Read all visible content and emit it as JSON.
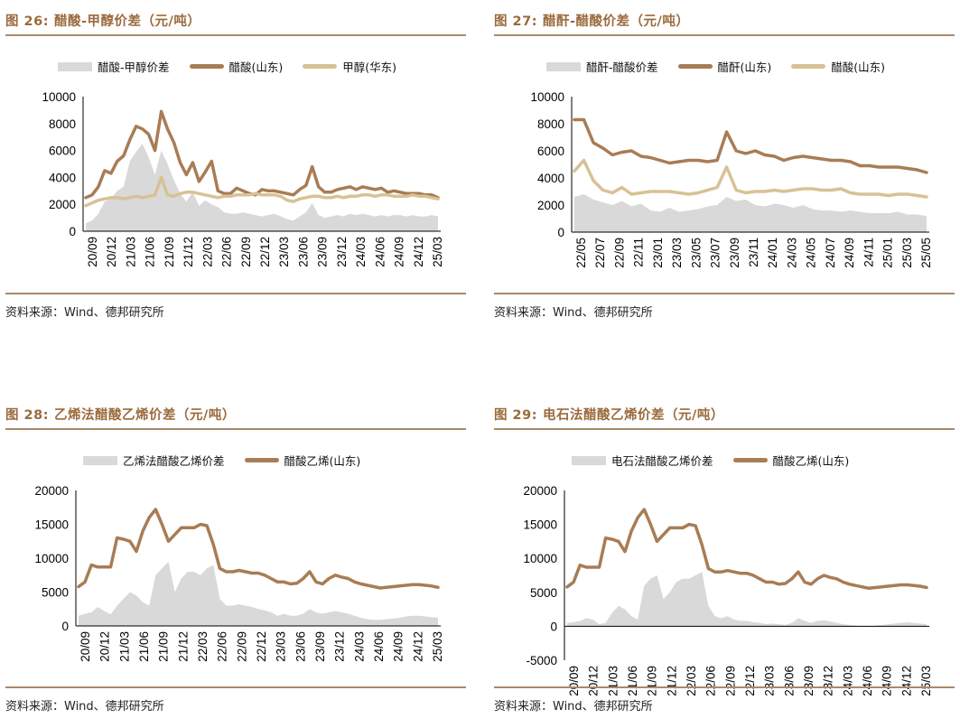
{
  "panels": [
    {
      "fig_num": "图 26:",
      "fig_title": "醋酸-甲醇价差（元/吨）",
      "source": "资料来源：Wind、德邦研究所"
    },
    {
      "fig_num": "图 27:",
      "fig_title": "醋酐-醋酸价差（元/吨）",
      "source": "资料来源：Wind、德邦研究所"
    },
    {
      "fig_num": "图 28:",
      "fig_title": "乙烯法醋酸乙烯价差（元/吨）",
      "source": "资料来源：Wind、德邦研究所"
    },
    {
      "fig_num": "图 29:",
      "fig_title": "电石法醋酸乙烯价差（元/吨）",
      "source": "资料来源：Wind、德邦研究所"
    }
  ],
  "colors": {
    "title": "#9a6b3d",
    "rule": "#a88a6b",
    "area": "#d9d9d9",
    "dark_line": "#a87c55",
    "light_line": "#d8c195"
  },
  "chart_data": [
    {
      "type": "line",
      "title": "",
      "x_tick_labels": [
        "20/09",
        "20/12",
        "21/03",
        "21/06",
        "21/09",
        "21/12",
        "22/03",
        "22/06",
        "22/09",
        "22/12",
        "23/03",
        "23/06",
        "23/09",
        "23/12",
        "24/03",
        "24/06",
        "24/09",
        "24/12",
        "25/03"
      ],
      "x": [
        "20/09",
        "20/10",
        "20/11",
        "20/12",
        "21/01",
        "21/02",
        "21/03",
        "21/04",
        "21/05",
        "21/06",
        "21/07",
        "21/08",
        "21/09",
        "21/10",
        "21/11",
        "21/12",
        "22/01",
        "22/02",
        "22/03",
        "22/04",
        "22/05",
        "22/06",
        "22/07",
        "22/08",
        "22/09",
        "22/10",
        "22/11",
        "22/12",
        "23/01",
        "23/02",
        "23/03",
        "23/04",
        "23/05",
        "23/06",
        "23/07",
        "23/08",
        "23/09",
        "23/10",
        "23/11",
        "23/12",
        "24/01",
        "24/02",
        "24/03",
        "24/04",
        "24/05",
        "24/06",
        "24/07",
        "24/08",
        "24/09",
        "24/10",
        "24/11",
        "24/12",
        "25/01",
        "25/02",
        "25/03",
        "25/04",
        "25/05"
      ],
      "ylim": [
        0,
        10000
      ],
      "yticks": [
        0,
        2000,
        4000,
        6000,
        8000,
        10000
      ],
      "series": [
        {
          "name": "醋酸-甲醇价差",
          "kind": "area",
          "values": [
            600,
            800,
            1300,
            2200,
            2400,
            3000,
            3300,
            5200,
            5900,
            6500,
            5500,
            4200,
            6000,
            5000,
            3800,
            2800,
            2200,
            2900,
            1900,
            2300,
            2000,
            1800,
            1400,
            1300,
            1300,
            1400,
            1300,
            1200,
            1100,
            1200,
            1300,
            1100,
            900,
            800,
            1100,
            1400,
            2100,
            1200,
            1000,
            1100,
            1200,
            1100,
            1300,
            1200,
            1300,
            1200,
            1100,
            1200,
            1100,
            1200,
            1200,
            1100,
            1200,
            1100,
            1100,
            1200,
            1100
          ]
        },
        {
          "name": "醋酸(山东)",
          "kind": "line",
          "values": [
            2500,
            2700,
            3300,
            4500,
            4300,
            5200,
            5600,
            6800,
            7800,
            7600,
            7200,
            6000,
            8900,
            7600,
            6600,
            5100,
            4200,
            5100,
            3700,
            4400,
            5200,
            3000,
            2800,
            2800,
            3200,
            3000,
            2800,
            2700,
            3100,
            3000,
            3000,
            2900,
            2800,
            2700,
            3100,
            3400,
            4800,
            3300,
            2900,
            2900,
            3100,
            3200,
            3300,
            3100,
            3300,
            3200,
            3100,
            3200,
            2900,
            3000,
            2900,
            2800,
            2800,
            2800,
            2700,
            2700,
            2500
          ]
        },
        {
          "name": "甲醇(华东)",
          "kind": "line",
          "values": [
            1900,
            2100,
            2300,
            2400,
            2500,
            2500,
            2400,
            2500,
            2600,
            2500,
            2600,
            2700,
            4000,
            2700,
            2600,
            2800,
            2900,
            2900,
            2800,
            2700,
            2600,
            2500,
            2600,
            2600,
            2700,
            2700,
            2700,
            2800,
            2700,
            2700,
            2700,
            2600,
            2300,
            2200,
            2400,
            2500,
            2600,
            2600,
            2500,
            2500,
            2600,
            2500,
            2600,
            2600,
            2700,
            2700,
            2600,
            2700,
            2700,
            2600,
            2600,
            2600,
            2700,
            2600,
            2600,
            2500,
            2400
          ]
        }
      ]
    },
    {
      "type": "line",
      "title": "",
      "x_tick_labels": [
        "22/05",
        "22/07",
        "22/09",
        "22/11",
        "23/01",
        "23/03",
        "23/05",
        "23/07",
        "23/09",
        "23/11",
        "24/01",
        "24/03",
        "24/05",
        "24/07",
        "24/09",
        "24/11",
        "25/01",
        "25/03",
        "25/05"
      ],
      "x": [
        "22/05",
        "22/06",
        "22/07",
        "22/08",
        "22/09",
        "22/10",
        "22/11",
        "22/12",
        "23/01",
        "23/02",
        "23/03",
        "23/04",
        "23/05",
        "23/06",
        "23/07",
        "23/08",
        "23/09",
        "23/10",
        "23/11",
        "23/12",
        "24/01",
        "24/02",
        "24/03",
        "24/04",
        "24/05",
        "24/06",
        "24/07",
        "24/08",
        "24/09",
        "24/10",
        "24/11",
        "24/12",
        "25/01",
        "25/02",
        "25/03",
        "25/04",
        "25/05",
        "25/06"
      ],
      "ylim": [
        0,
        10000
      ],
      "yticks": [
        0,
        2000,
        4000,
        6000,
        8000,
        10000
      ],
      "series": [
        {
          "name": "醋酐-醋酸价差",
          "kind": "area",
          "values": [
            2600,
            2800,
            2400,
            2200,
            2000,
            2300,
            1900,
            2100,
            1600,
            1500,
            1800,
            1500,
            1600,
            1700,
            1900,
            2000,
            2600,
            2300,
            2400,
            2000,
            1900,
            2100,
            2000,
            1800,
            2000,
            1700,
            1600,
            1600,
            1500,
            1600,
            1500,
            1400,
            1400,
            1400,
            1500,
            1300,
            1300,
            1200
          ]
        },
        {
          "name": "醋酐(山东)",
          "kind": "line",
          "values": [
            8300,
            8300,
            6600,
            6200,
            5700,
            5900,
            6000,
            5600,
            5500,
            5300,
            5100,
            5200,
            5300,
            5300,
            5200,
            5300,
            7400,
            6000,
            5800,
            6000,
            5700,
            5600,
            5300,
            5500,
            5600,
            5500,
            5400,
            5300,
            5300,
            5200,
            4900,
            4900,
            4800,
            4800,
            4800,
            4700,
            4600,
            4400
          ]
        },
        {
          "name": "醋酸(山东)",
          "kind": "line",
          "values": [
            4500,
            5300,
            3800,
            3100,
            2900,
            3300,
            2800,
            2900,
            3000,
            3000,
            3000,
            2900,
            2800,
            2900,
            3100,
            3300,
            4800,
            3100,
            2900,
            3000,
            3000,
            3100,
            3000,
            3100,
            3200,
            3200,
            3100,
            3100,
            3200,
            2900,
            2800,
            2800,
            2800,
            2700,
            2800,
            2800,
            2700,
            2600
          ]
        }
      ]
    },
    {
      "type": "line",
      "title": "",
      "x_tick_labels": [
        "20/09",
        "20/12",
        "21/03",
        "21/06",
        "21/09",
        "21/12",
        "22/03",
        "22/06",
        "22/09",
        "22/12",
        "23/03",
        "23/06",
        "23/09",
        "23/12",
        "24/03",
        "24/06",
        "24/09",
        "24/12",
        "25/03"
      ],
      "x": [
        "20/09",
        "20/10",
        "20/11",
        "20/12",
        "21/01",
        "21/02",
        "21/03",
        "21/04",
        "21/05",
        "21/06",
        "21/07",
        "21/08",
        "21/09",
        "21/10",
        "21/11",
        "21/12",
        "22/01",
        "22/02",
        "22/03",
        "22/04",
        "22/05",
        "22/06",
        "22/07",
        "22/08",
        "22/09",
        "22/10",
        "22/11",
        "22/12",
        "23/01",
        "23/02",
        "23/03",
        "23/04",
        "23/05",
        "23/06",
        "23/07",
        "23/08",
        "23/09",
        "23/10",
        "23/11",
        "23/12",
        "24/01",
        "24/02",
        "24/03",
        "24/04",
        "24/05",
        "24/06",
        "24/07",
        "24/08",
        "24/09",
        "24/10",
        "24/11",
        "24/12",
        "25/01",
        "25/02",
        "25/03",
        "25/04",
        "25/05"
      ],
      "ylim": [
        0,
        20000
      ],
      "yticks": [
        0,
        5000,
        10000,
        15000,
        20000
      ],
      "series": [
        {
          "name": "乙烯法醋酸乙烯价差",
          "kind": "area",
          "values": [
            1500,
            1800,
            2000,
            2800,
            2200,
            1700,
            3000,
            4000,
            5000,
            4500,
            3500,
            3000,
            7500,
            8500,
            9500,
            5000,
            7000,
            8000,
            8000,
            7500,
            8500,
            9000,
            4000,
            3000,
            3000,
            3200,
            3000,
            2800,
            2500,
            2300,
            2000,
            1500,
            1800,
            1500,
            1500,
            1800,
            2500,
            2000,
            1800,
            2000,
            2200,
            2000,
            1800,
            1500,
            1200,
            1000,
            900,
            900,
            1000,
            1100,
            1200,
            1400,
            1500,
            1500,
            1400,
            1300,
            1200
          ]
        },
        {
          "name": "醋酸乙烯(山东)",
          "kind": "line",
          "values": [
            5800,
            6500,
            9000,
            8700,
            8700,
            8700,
            13000,
            12800,
            12500,
            11000,
            14000,
            16000,
            17200,
            15000,
            12500,
            13500,
            14500,
            14500,
            14500,
            15000,
            14800,
            12000,
            8500,
            8000,
            8000,
            8200,
            8000,
            7800,
            7800,
            7500,
            7000,
            6500,
            6500,
            6200,
            6300,
            7000,
            8000,
            6500,
            6200,
            7000,
            7500,
            7200,
            7000,
            6500,
            6200,
            6000,
            5800,
            5600,
            5700,
            5800,
            5900,
            6000,
            6100,
            6100,
            6000,
            5900,
            5700
          ]
        }
      ]
    },
    {
      "type": "line",
      "title": "",
      "x_tick_labels": [
        "20/09",
        "20/12",
        "21/03",
        "21/06",
        "21/09",
        "21/12",
        "22/03",
        "22/06",
        "22/09",
        "22/12",
        "23/03",
        "23/06",
        "23/09",
        "23/12",
        "24/03",
        "24/06",
        "24/09",
        "24/12",
        "25/03"
      ],
      "x": [
        "20/09",
        "20/10",
        "20/11",
        "20/12",
        "21/01",
        "21/02",
        "21/03",
        "21/04",
        "21/05",
        "21/06",
        "21/07",
        "21/08",
        "21/09",
        "21/10",
        "21/11",
        "21/12",
        "22/01",
        "22/02",
        "22/03",
        "22/04",
        "22/05",
        "22/06",
        "22/07",
        "22/08",
        "22/09",
        "22/10",
        "22/11",
        "22/12",
        "23/01",
        "23/02",
        "23/03",
        "23/04",
        "23/05",
        "23/06",
        "23/07",
        "23/08",
        "23/09",
        "23/10",
        "23/11",
        "23/12",
        "24/01",
        "24/02",
        "24/03",
        "24/04",
        "24/05",
        "24/06",
        "24/07",
        "24/08",
        "24/09",
        "24/10",
        "24/11",
        "24/12",
        "25/01",
        "25/02",
        "25/03",
        "25/04",
        "25/05"
      ],
      "ylim": [
        -5000,
        20000
      ],
      "yticks": [
        -5000,
        0,
        5000,
        10000,
        15000,
        20000
      ],
      "series": [
        {
          "name": "电石法醋酸乙烯价差",
          "kind": "area",
          "values": [
            500,
            600,
            800,
            1200,
            1000,
            300,
            500,
            2000,
            3000,
            2500,
            1500,
            1000,
            6000,
            7000,
            7500,
            4000,
            5000,
            6500,
            7000,
            7000,
            7500,
            8000,
            3000,
            1500,
            1200,
            1500,
            1000,
            800,
            800,
            600,
            500,
            300,
            400,
            300,
            200,
            500,
            1200,
            800,
            500,
            800,
            900,
            700,
            500,
            300,
            200,
            100,
            0,
            -100,
            100,
            200,
            300,
            400,
            500,
            600,
            500,
            400,
            300
          ]
        },
        {
          "name": "醋酸乙烯(山东)",
          "kind": "line",
          "values": [
            5800,
            6500,
            9000,
            8700,
            8700,
            8700,
            13000,
            12800,
            12500,
            11000,
            14000,
            16000,
            17200,
            15000,
            12500,
            13500,
            14500,
            14500,
            14500,
            15000,
            14800,
            12000,
            8500,
            8000,
            8000,
            8200,
            8000,
            7800,
            7800,
            7500,
            7000,
            6500,
            6500,
            6200,
            6300,
            7000,
            8000,
            6500,
            6200,
            7000,
            7500,
            7200,
            7000,
            6500,
            6200,
            6000,
            5800,
            5600,
            5700,
            5800,
            5900,
            6000,
            6100,
            6100,
            6000,
            5900,
            5700
          ]
        }
      ]
    }
  ]
}
